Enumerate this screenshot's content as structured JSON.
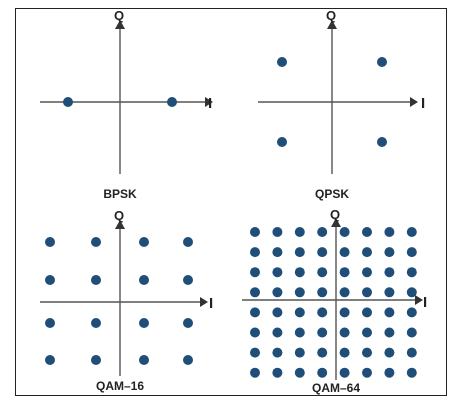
{
  "diagrams": [
    {
      "title": "BPSK",
      "axis_x": "I",
      "axis_y": "Q",
      "points": [
        [
          -1,
          0
        ],
        [
          1,
          0
        ]
      ],
      "grid": "none"
    },
    {
      "title": "QPSK",
      "axis_x": "I",
      "axis_y": "Q",
      "points": [
        [
          -1,
          1
        ],
        [
          1,
          1
        ],
        [
          -1,
          -1
        ],
        [
          1,
          -1
        ]
      ],
      "grid": "none"
    },
    {
      "title": "QAM–16",
      "axis_x": "I",
      "axis_y": "Q",
      "grid": "4x4"
    },
    {
      "title": "QAM–64",
      "axis_x": "I",
      "axis_y": "Q",
      "grid": "8x8"
    }
  ],
  "colors": {
    "dot": "#1f4e79",
    "axis": "#555555",
    "frame": "#222222"
  }
}
